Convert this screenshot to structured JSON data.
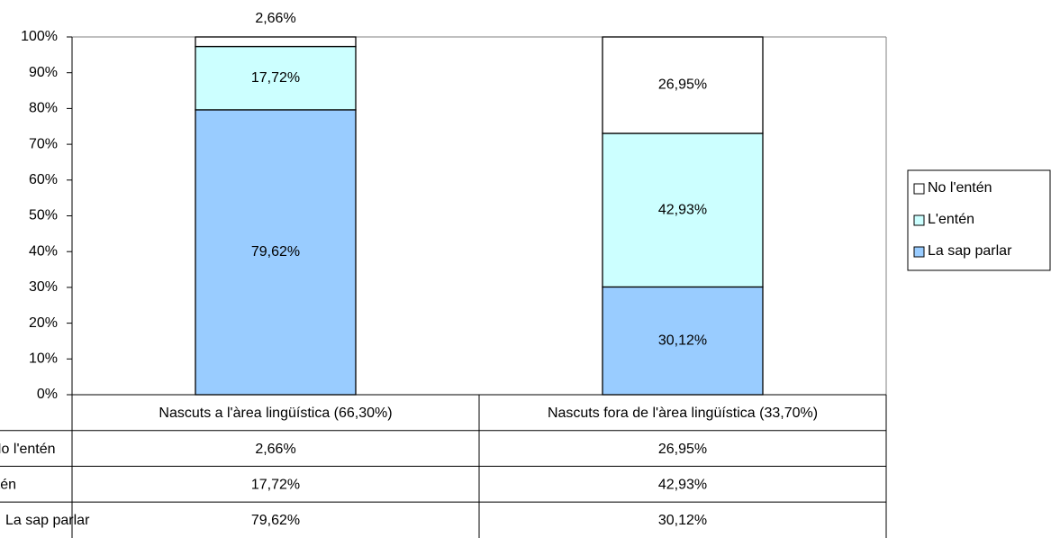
{
  "chart_data": {
    "type": "stacked_bar",
    "categories": [
      "Nascuts a l'àrea lingüística (66,30%)",
      "Nascuts fora de l'àrea lingüística (33,70%)"
    ],
    "series": [
      {
        "name": "La sap parlar",
        "color": "#99ccff",
        "values": [
          79.62,
          30.12
        ],
        "value_labels": [
          "79,62%",
          "30,12%"
        ]
      },
      {
        "name": "L'entén",
        "color": "#ccffff",
        "values": [
          17.72,
          42.93
        ],
        "value_labels": [
          "17,72%",
          "42,93%"
        ]
      },
      {
        "name": "No l'entén",
        "color": "#ffffff",
        "values": [
          2.66,
          26.95
        ],
        "value_labels": [
          "2,66%",
          "26,95%"
        ]
      }
    ],
    "ylim": [
      0,
      100
    ],
    "yticks": [
      {
        "value": 0,
        "label": "0%"
      },
      {
        "value": 10,
        "label": "10%"
      },
      {
        "value": 20,
        "label": "20%"
      },
      {
        "value": 30,
        "label": "30%"
      },
      {
        "value": 40,
        "label": "40%"
      },
      {
        "value": 50,
        "label": "50%"
      },
      {
        "value": 60,
        "label": "60%"
      },
      {
        "value": 70,
        "label": "70%"
      },
      {
        "value": 80,
        "label": "80%"
      },
      {
        "value": 90,
        "label": "90%"
      },
      {
        "value": 100,
        "label": "100%"
      }
    ],
    "legend": "right",
    "data_table": true
  }
}
